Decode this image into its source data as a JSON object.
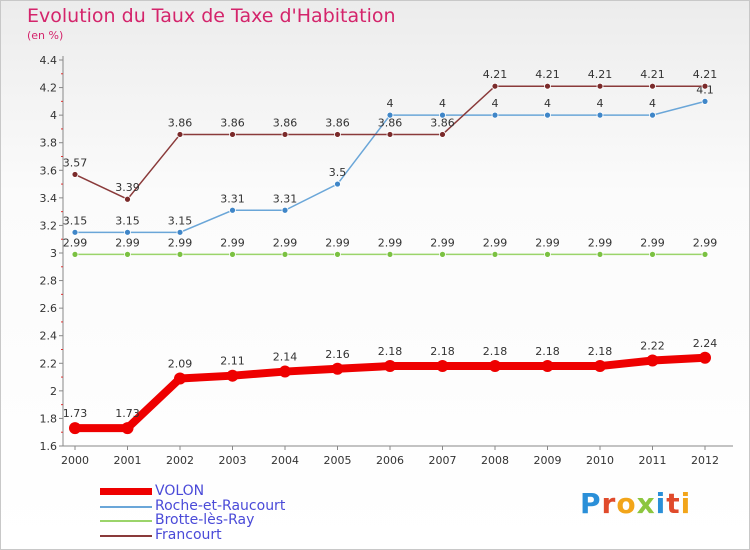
{
  "header": {
    "title": "Evolution du Taux de Taxe d'Habitation",
    "subtitle": "(en %)"
  },
  "logo": {
    "text": "Proxiti",
    "letters": [
      {
        "ch": "P",
        "color": "#2a8fd8"
      },
      {
        "ch": "r",
        "color": "#e04a2b"
      },
      {
        "ch": "o",
        "color": "#f2a51a"
      },
      {
        "ch": "x",
        "color": "#8cc63f"
      },
      {
        "ch": "i",
        "color": "#2a8fd8"
      },
      {
        "ch": "t",
        "color": "#e04a2b"
      },
      {
        "ch": "i",
        "color": "#f2a51a"
      }
    ]
  },
  "chart_data": {
    "type": "line",
    "title": "Evolution du Taux de Taxe d'Habitation",
    "ylabel": "(en %)",
    "xlabel": "",
    "x": [
      "2000",
      "2001",
      "2002",
      "2003",
      "2004",
      "2005",
      "2006",
      "2007",
      "2008",
      "2009",
      "2010",
      "2011",
      "2012"
    ],
    "ylim": [
      1.6,
      4.4
    ],
    "yticks": [
      "1.6",
      "1.8",
      "2",
      "2.2",
      "2.4",
      "2.6",
      "2.8",
      "3",
      "3.2",
      "3.4",
      "3.6",
      "3.8",
      "4",
      "4.2",
      "4.4"
    ],
    "grid": false,
    "legend_position": "bottom-left",
    "series": [
      {
        "name": "VOLON",
        "color": "#ee0000",
        "emphasis": true,
        "values": [
          1.73,
          1.73,
          2.09,
          2.11,
          2.14,
          2.16,
          2.18,
          2.18,
          2.18,
          2.18,
          2.18,
          2.22,
          2.24
        ],
        "labels": [
          "1.73",
          "1.73",
          "2.09",
          "2.11",
          "2.14",
          "2.16",
          "2.18",
          "2.18",
          "2.18",
          "2.18",
          "2.18",
          "2.22",
          "2.24"
        ]
      },
      {
        "name": "Roche-et-Raucourt",
        "color": "#6aa6d8",
        "marker": "#3f86c8",
        "values": [
          3.15,
          3.15,
          3.15,
          3.31,
          3.31,
          3.5,
          4,
          4,
          4,
          4,
          4,
          4,
          4.1
        ],
        "labels": [
          "3.15",
          "3.15",
          "3.15",
          "3.31",
          "3.31",
          "3.5",
          "4",
          "4",
          "4",
          "4",
          "4",
          "4",
          "4.1"
        ]
      },
      {
        "name": "Brotte-lès-Ray",
        "color": "#9bd46a",
        "marker": "#7bc142",
        "values": [
          2.99,
          2.99,
          2.99,
          2.99,
          2.99,
          2.99,
          2.99,
          2.99,
          2.99,
          2.99,
          2.99,
          2.99,
          2.99
        ],
        "labels": [
          "2.99",
          "2.99",
          "2.99",
          "2.99",
          "2.99",
          "2.99",
          "2.99",
          "2.99",
          "2.99",
          "2.99",
          "2.99",
          "2.99",
          "2.99"
        ]
      },
      {
        "name": "Francourt",
        "color": "#8a3a3a",
        "marker": "#7a2a2a",
        "values": [
          3.57,
          3.39,
          3.86,
          3.86,
          3.86,
          3.86,
          3.86,
          3.86,
          4.21,
          4.21,
          4.21,
          4.21,
          4.21
        ],
        "labels": [
          "3.57",
          "3.39",
          "3.86",
          "3.86",
          "3.86",
          "3.86",
          "3.86",
          "3.86",
          "4.21",
          "4.21",
          "4.21",
          "4.21",
          "4.21"
        ]
      }
    ]
  }
}
